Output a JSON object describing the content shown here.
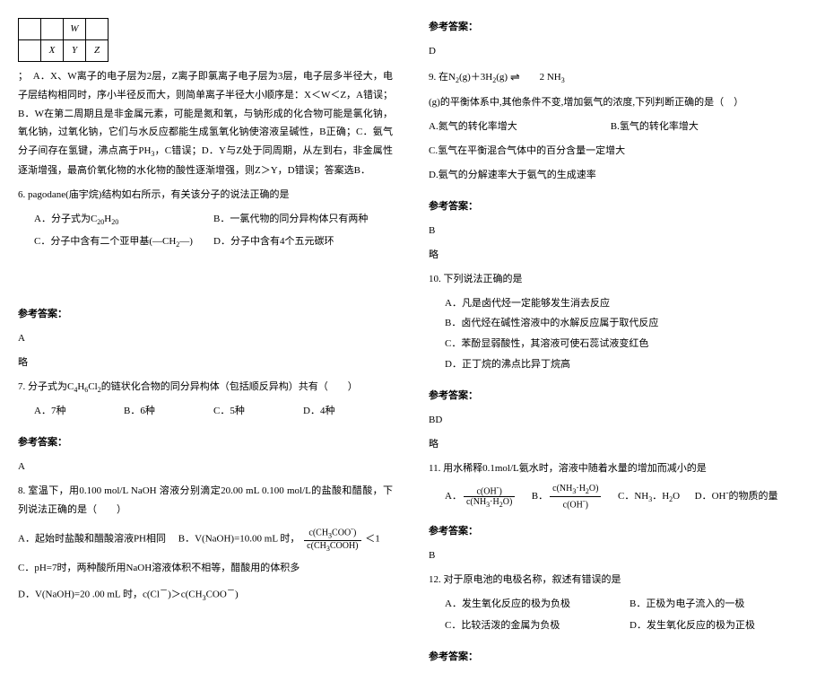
{
  "left": {
    "table_cells": {
      "w": "W",
      "x": "X",
      "y": "Y",
      "z": "Z"
    },
    "q5_text": "；&nbsp;&nbsp;A．X、W离子的电子层为2层，Z离子即氯离子电子层为3层，电子层多半径大，电子层结构相同时，序小半径反而大，则简单离子半径大小顺序是：X＜W＜Z，A错误；B．W在第二周期且是非金属元素，可能是氮和氧，与钠形成的化合物可能是氯化钠，氧化钠，过氧化钠，它们与水反应都能生成氢氧化钠使溶液呈碱性，B正确；C．氨气分子间存在氢键，沸点高于PH<sub>3</sub>，C错误；D．Y与Z处于同周期，从左到右，非金属性逐渐增强，最高价氧化物的水化物的酸性逐渐增强，则Z＞Y，D错误；答案选B．",
    "q6_stem": "6. pagodane(庙宇烷)结构如右所示，有关该分子的说法正确的是",
    "q6_a": "A．分子式为C<sub>20</sub>H<sub>20</sub>",
    "q6_b": "B．一氯代物的同分异构体只有两种",
    "q6_c": "C．分子中含有二个亚甲基(—CH<sub>2</sub>—)",
    "q6_d": "D．分子中含有4个五元碳环",
    "ans_label": "参考答案：",
    "ans6": "A",
    "omit": "略",
    "q7_stem": "7. 分子式为C<sub>4</sub>H<sub>6</sub>Cl<sub>2</sub>的链状化合物的同分异构体（包括顺反异构）共有（　　）",
    "q7_a": "A．7种",
    "q7_b": "B．6种",
    "q7_c": "C．5种",
    "q7_d": "D．4种",
    "ans7": "A",
    "q8_stem": "8. 室温下，用0.100 mol/L NaOH 溶液分别滴定20.00 mL 0.100 mol/L的盐酸和醋酸，下列说法正确的是（　　）",
    "q8_a": "A．起始时盐酸和醋酸溶液PH相同",
    "q8_b_pre": "B．V(NaOH)=10.00 mL 时，",
    "q8_b_frac_num": "c(CH<sub>3</sub>COO<sup>-</sup>)",
    "q8_b_frac_den": "c(CH<sub>3</sub>COOH)",
    "q8_b_post": "＜1",
    "q8_c": "C．pH=7时，两种酸所用NaOH溶液体积不相等，醋酸用的体积多",
    "q8_d": "D．V(NaOH)=20 .00 mL 时，c(Cl<sup>－</sup>)＞c(CH<sub>3</sub>COO<sup>－</sup>)"
  },
  "right": {
    "ans_label": "参考答案：",
    "ans8": "D",
    "q9_pre": "9. 在N<sub>2</sub>(g)＋3H<sub>2</sub>(g)",
    "q9_post": "2 NH<sub>3</sub>",
    "q9_tail": "(g)的平衡体系中,其他条件不变,增加氨气的浓度,下列判断正确的是（　）",
    "q9_a": "A.氮气的转化率增大",
    "q9_b": "B.氢气的转化率增大",
    "q9_c": "C.氢气在平衡混合气体中的百分含量一定增大",
    "q9_d": "D.氨气的分解速率大于氨气的生成速率",
    "ans9": "B",
    "omit": "略",
    "q10_stem": "10. 下列说法正确的是",
    "q10_a": "A．凡是卤代烃一定能够发生消去反应",
    "q10_b": "B．卤代烃在碱性溶液中的水解反应属于取代反应",
    "q10_c": "C．苯酚显弱酸性，其溶液可使石蕊试液变红色",
    "q10_d": "D．正丁烷的沸点比异丁烷高",
    "ans10": "BD",
    "q11_stem": "11. 用水稀释0.1mol/L氨水时，溶液中随着水量的增加而减小的是",
    "q11_a_num": "c(OH<sup>-</sup>)",
    "q11_a_den": "c(NH<sub>3</sub>·H<sub>2</sub>O)",
    "q11_b_num": "c(NH<sub>3</sub>·H<sub>2</sub>O)",
    "q11_b_den": "c(OH<sup>-</sup>)",
    "q11_c": "C．NH<sub>3</sub>．H<sub>2</sub>O",
    "q11_d": "D．OH<sup>-</sup>的物质的量",
    "ans11": "B",
    "q12_stem": "12. 对于原电池的电极名称，叙述有错误的是",
    "q12_a": "A．发生氧化反应的极为负极",
    "q12_b": "B．正极为电子流入的一极",
    "q12_c": "C．比较活泼的金属为负极",
    "q12_d": "D．发生氧化反应的极为正极"
  }
}
